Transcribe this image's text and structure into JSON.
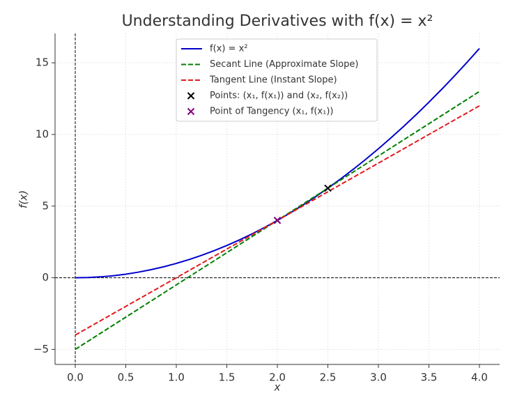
{
  "chart_data": {
    "type": "line",
    "title": "Understanding Derivatives with f(x) = x²",
    "x_label": "x",
    "y_label": "f(x)",
    "xlim": [
      -0.2,
      4.2
    ],
    "ylim": [
      -6.05,
      17.05
    ],
    "xticks": [
      {
        "value": 0,
        "label": "0.0"
      },
      {
        "value": 0.5,
        "label": "0.5"
      },
      {
        "value": 1,
        "label": "1.0"
      },
      {
        "value": 1.5,
        "label": "1.5"
      },
      {
        "value": 2,
        "label": "2.0"
      },
      {
        "value": 2.5,
        "label": "2.5"
      },
      {
        "value": 3,
        "label": "3.0"
      },
      {
        "value": 3.5,
        "label": "3.5"
      },
      {
        "value": 4,
        "label": "4.0"
      }
    ],
    "yticks": [
      {
        "value": -5,
        "label": "−5"
      },
      0,
      5,
      10,
      15
    ],
    "grid": true,
    "hlines": [
      0
    ],
    "vlines": [
      0
    ],
    "legend": "upper center",
    "series": [
      {
        "name": "f(x) = x²",
        "color": "#0000cc",
        "style": "solid",
        "x": [
          0,
          0.125,
          0.25,
          0.375,
          0.5,
          0.625,
          0.75,
          0.875,
          1,
          1.125,
          1.25,
          1.375,
          1.5,
          1.625,
          1.75,
          1.875,
          2,
          2.125,
          2.25,
          2.375,
          2.5,
          2.625,
          2.75,
          2.875,
          3,
          3.125,
          3.25,
          3.375,
          3.5,
          3.625,
          3.75,
          3.875,
          4
        ],
        "values": [
          0,
          0.015625,
          0.0625,
          0.140625,
          0.25,
          0.390625,
          0.5625,
          0.765625,
          1,
          1.265625,
          1.5625,
          1.890625,
          2.25,
          2.640625,
          3.0625,
          3.515625,
          4,
          4.515625,
          5.0625,
          5.640625,
          6.25,
          6.890625,
          7.5625,
          8.265625,
          9,
          9.765625,
          10.5625,
          11.390625,
          12.25,
          13.140625,
          14.0625,
          15.015625,
          16
        ]
      },
      {
        "name": "Secant Line (Approximate Slope)",
        "color": "#008000",
        "style": "dashed",
        "x": [
          0,
          4
        ],
        "values": [
          -5,
          13
        ]
      },
      {
        "name": "Tangent Line (Instant Slope)",
        "color": "#e31a1c",
        "style": "dashed",
        "x": [
          0,
          4
        ],
        "values": [
          -4,
          12
        ]
      },
      {
        "name": "Points: (x₁, f(x₁)) and (x₂, f(x₂))",
        "color": "#000000",
        "marker": "x",
        "x": [
          2,
          2.5
        ],
        "values": [
          4,
          6.25
        ]
      },
      {
        "name": "Point of Tangency (x₁, f(x₁))",
        "color": "#800080",
        "marker": "x",
        "x": [
          2
        ],
        "values": [
          4
        ]
      }
    ]
  }
}
